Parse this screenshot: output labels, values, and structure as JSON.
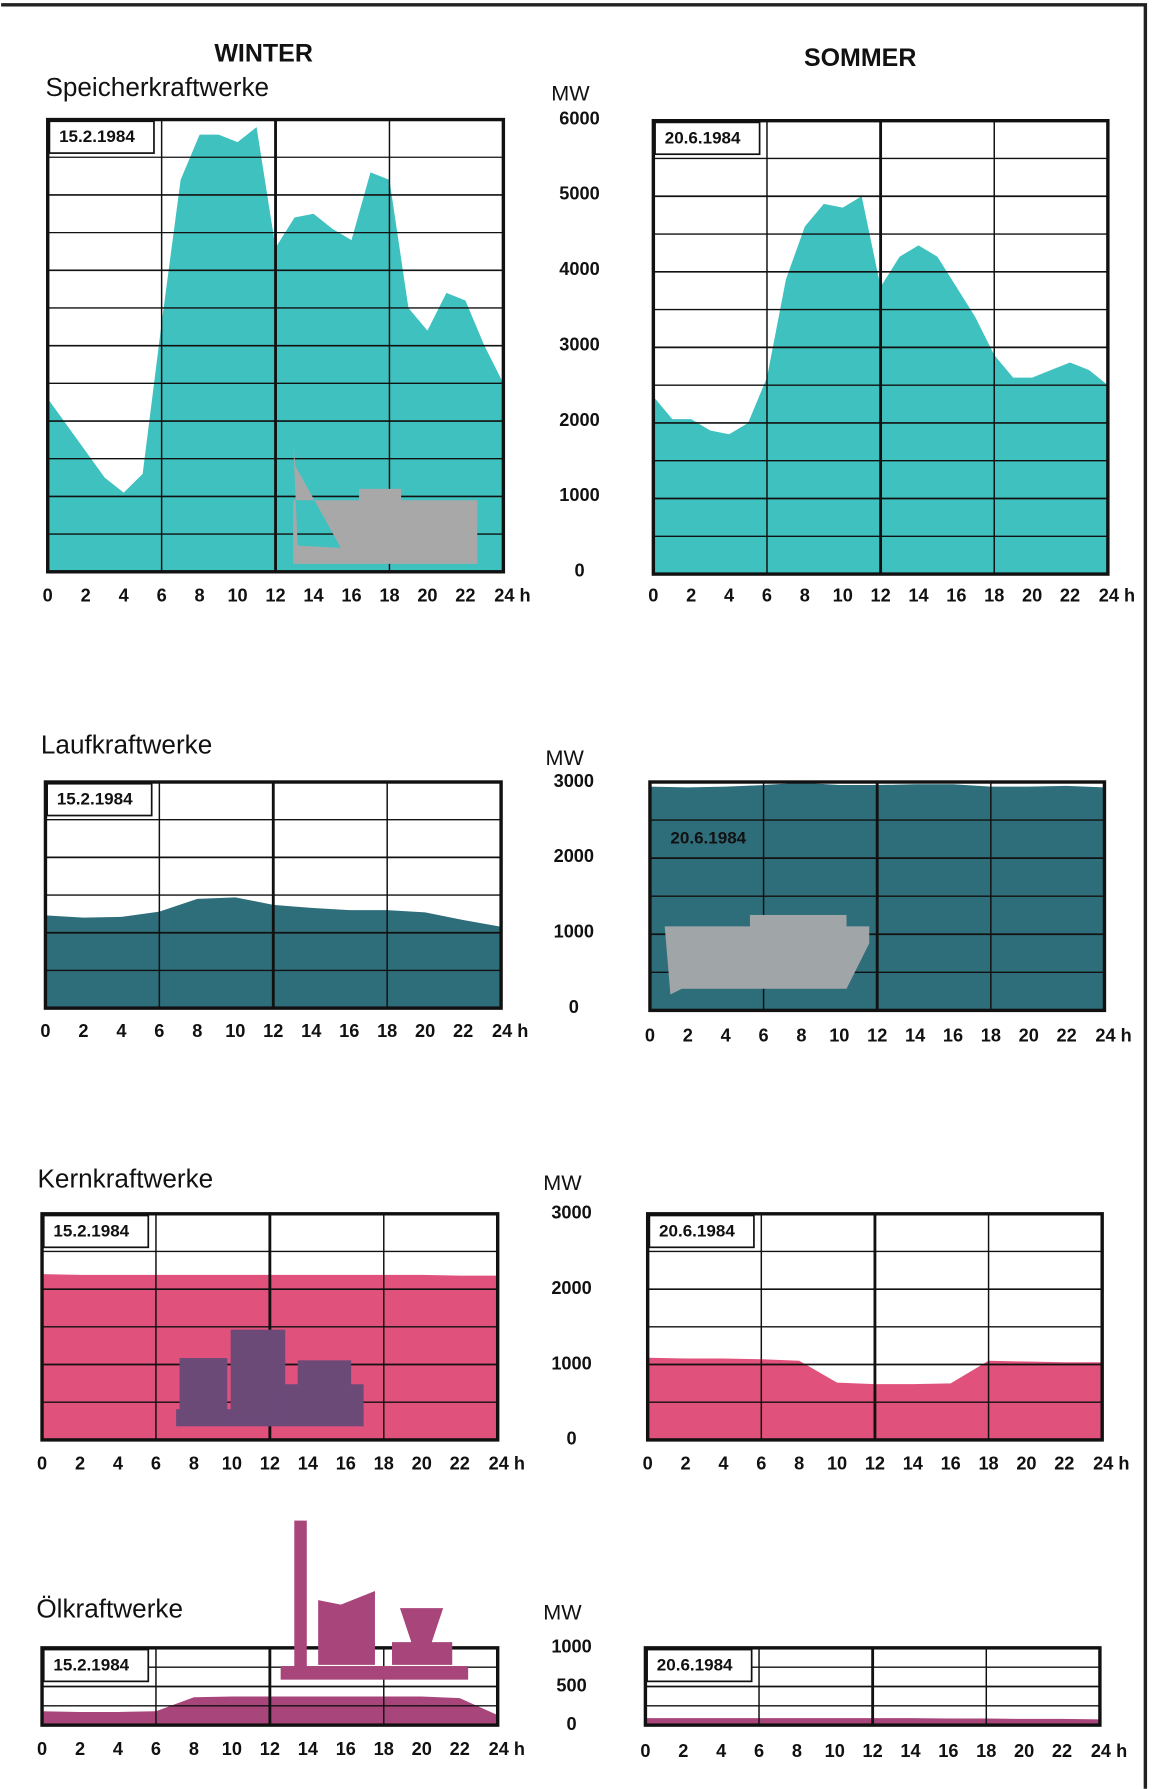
{
  "columns": [
    "WINTER",
    "SOMMER"
  ],
  "chart_data": [
    {
      "type": "area",
      "title": "Speicherkraftwerke",
      "y_label": "MW",
      "date": "15.2.1984",
      "color": "#3fc1c0",
      "x": [
        0,
        1,
        2,
        3,
        4,
        5,
        6,
        7,
        8,
        9,
        10,
        11,
        12,
        13,
        14,
        15,
        16,
        17,
        18,
        19,
        20,
        21,
        22,
        23,
        24
      ],
      "values": [
        2300,
        1950,
        1600,
        1250,
        1050,
        1300,
        3300,
        5200,
        5800,
        5800,
        5700,
        5900,
        4300,
        4700,
        4750,
        4550,
        4400,
        5300,
        5200,
        3500,
        3200,
        3700,
        3600,
        3000,
        2500
      ],
      "ylim": [
        0,
        6000
      ],
      "yticks": [
        0,
        1000,
        2000,
        3000,
        4000,
        5000,
        6000
      ],
      "minor_yticks": [
        500,
        1500,
        2500,
        3500,
        4500,
        5500
      ],
      "xlim": [
        0,
        24
      ],
      "xticks": [
        0,
        2,
        4,
        6,
        8,
        10,
        12,
        14,
        16,
        18,
        20,
        22,
        {
          "value": 24,
          "label": "24 h"
        }
      ],
      "xgrid": [
        6,
        12,
        18
      ]
    },
    {
      "type": "area",
      "date": "20.6.1984",
      "color": "#3fc1c0",
      "x": [
        0,
        1,
        2,
        3,
        4,
        5,
        6,
        7,
        8,
        9,
        10,
        11,
        12,
        13,
        14,
        15,
        16,
        17,
        18,
        19,
        20,
        21,
        22,
        23,
        24
      ],
      "values": [
        2350,
        2050,
        2050,
        1900,
        1850,
        2000,
        2600,
        3900,
        4600,
        4900,
        4850,
        5000,
        3800,
        4200,
        4350,
        4200,
        3800,
        3400,
        2900,
        2600,
        2600,
        2700,
        2800,
        2700,
        2500
      ],
      "ylim": [
        0,
        6000
      ],
      "minor_yticks": [
        500,
        1500,
        2500,
        3500,
        4500,
        5500
      ],
      "xlim": [
        0,
        24
      ],
      "xticks": [
        0,
        2,
        4,
        6,
        8,
        10,
        12,
        14,
        16,
        18,
        20,
        22,
        {
          "value": 24,
          "label": "24 h"
        }
      ],
      "xgrid": [
        6,
        12,
        18
      ]
    },
    {
      "type": "area",
      "title": "Laufkraftwerke",
      "y_label": "MW",
      "date": "15.2.1984",
      "color": "#2e6e7b",
      "x": [
        0,
        2,
        4,
        6,
        8,
        10,
        12,
        14,
        16,
        18,
        20,
        22,
        24
      ],
      "values": [
        1230,
        1200,
        1210,
        1280,
        1450,
        1470,
        1370,
        1330,
        1300,
        1300,
        1270,
        1170,
        1080
      ],
      "ylim": [
        0,
        3000
      ],
      "yticks": [
        0,
        1000,
        2000,
        3000
      ],
      "minor_yticks": [
        500,
        1500,
        2500
      ],
      "xlim": [
        0,
        24
      ],
      "xticks": [
        0,
        2,
        4,
        6,
        8,
        10,
        12,
        14,
        16,
        18,
        20,
        22,
        {
          "value": 24,
          "label": "24 h"
        }
      ],
      "xgrid": [
        6,
        12,
        18
      ]
    },
    {
      "type": "area",
      "date": "20.6.1984",
      "color": "#2e6e7b",
      "x": [
        0,
        2,
        4,
        6,
        8,
        10,
        12,
        14,
        16,
        18,
        20,
        22,
        24
      ],
      "values": [
        2940,
        2930,
        2940,
        2960,
        2990,
        2960,
        2960,
        2970,
        2970,
        2940,
        2940,
        2950,
        2930
      ],
      "ylim": [
        0,
        3000
      ],
      "minor_yticks": [
        500,
        1500,
        2500
      ],
      "xlim": [
        0,
        24
      ],
      "xticks": [
        0,
        2,
        4,
        6,
        8,
        10,
        12,
        14,
        16,
        18,
        20,
        22,
        {
          "value": 24,
          "label": "24 h"
        }
      ],
      "xgrid": [
        6,
        12,
        18
      ]
    },
    {
      "type": "area",
      "title": "Kernkraftwerke",
      "y_label": "MW",
      "date": "15.2.1984",
      "color": "#e0517b",
      "x": [
        0,
        2,
        4,
        6,
        8,
        10,
        12,
        14,
        16,
        18,
        20,
        22,
        24
      ],
      "values": [
        2200,
        2190,
        2190,
        2190,
        2190,
        2190,
        2190,
        2190,
        2190,
        2190,
        2190,
        2180,
        2180
      ],
      "ylim": [
        0,
        3000
      ],
      "yticks": [
        0,
        1000,
        2000,
        3000
      ],
      "minor_yticks": [
        500,
        1500,
        2500
      ],
      "xlim": [
        0,
        24
      ],
      "xticks": [
        0,
        2,
        4,
        6,
        8,
        10,
        12,
        14,
        16,
        18,
        20,
        22,
        {
          "value": 24,
          "label": "24 h"
        }
      ],
      "xgrid": [
        6,
        12,
        18
      ]
    },
    {
      "type": "area",
      "date": "20.6.1984",
      "color": "#e0517b",
      "x": [
        0,
        2,
        4,
        6,
        8,
        10,
        12,
        14,
        16,
        18,
        20,
        22,
        24
      ],
      "values": [
        1090,
        1080,
        1080,
        1070,
        1050,
        760,
        740,
        740,
        750,
        1050,
        1040,
        1030,
        1030
      ],
      "ylim": [
        0,
        3000
      ],
      "minor_yticks": [
        500,
        1500,
        2500
      ],
      "xlim": [
        0,
        24
      ],
      "xticks": [
        0,
        2,
        4,
        6,
        8,
        10,
        12,
        14,
        16,
        18,
        20,
        22,
        {
          "value": 24,
          "label": "24 h"
        }
      ],
      "xgrid": [
        6,
        12,
        18
      ]
    },
    {
      "type": "area",
      "title": "Ölkraftwerke",
      "y_label": "MW",
      "date": "15.2.1984",
      "color": "#a8467b",
      "x": [
        0,
        2,
        4,
        6,
        8,
        10,
        12,
        14,
        16,
        18,
        20,
        22,
        24
      ],
      "values": [
        180,
        170,
        170,
        180,
        360,
        370,
        370,
        370,
        370,
        370,
        370,
        350,
        130
      ],
      "ylim": [
        0,
        1000
      ],
      "yticks": [
        0,
        500,
        1000
      ],
      "minor_yticks": [
        250,
        750
      ],
      "xlim": [
        0,
        24
      ],
      "xticks": [
        0,
        2,
        4,
        6,
        8,
        10,
        12,
        14,
        16,
        18,
        20,
        22,
        {
          "value": 24,
          "label": "24 h"
        }
      ],
      "xgrid": [
        6,
        12,
        18
      ]
    },
    {
      "type": "area",
      "date": "20.6.1984",
      "color": "#a8467b",
      "x": [
        0,
        2,
        4,
        6,
        8,
        10,
        12,
        14,
        16,
        18,
        20,
        22,
        24
      ],
      "values": [
        90,
        90,
        90,
        90,
        90,
        90,
        90,
        90,
        85,
        85,
        80,
        80,
        75
      ],
      "ylim": [
        0,
        1000
      ],
      "minor_yticks": [
        250,
        750
      ],
      "xlim": [
        0,
        24
      ],
      "xticks": [
        0,
        2,
        4,
        6,
        8,
        10,
        12,
        14,
        16,
        18,
        20,
        22,
        {
          "value": 24,
          "label": "24 h"
        }
      ],
      "xgrid": [
        6,
        12,
        18
      ]
    }
  ]
}
